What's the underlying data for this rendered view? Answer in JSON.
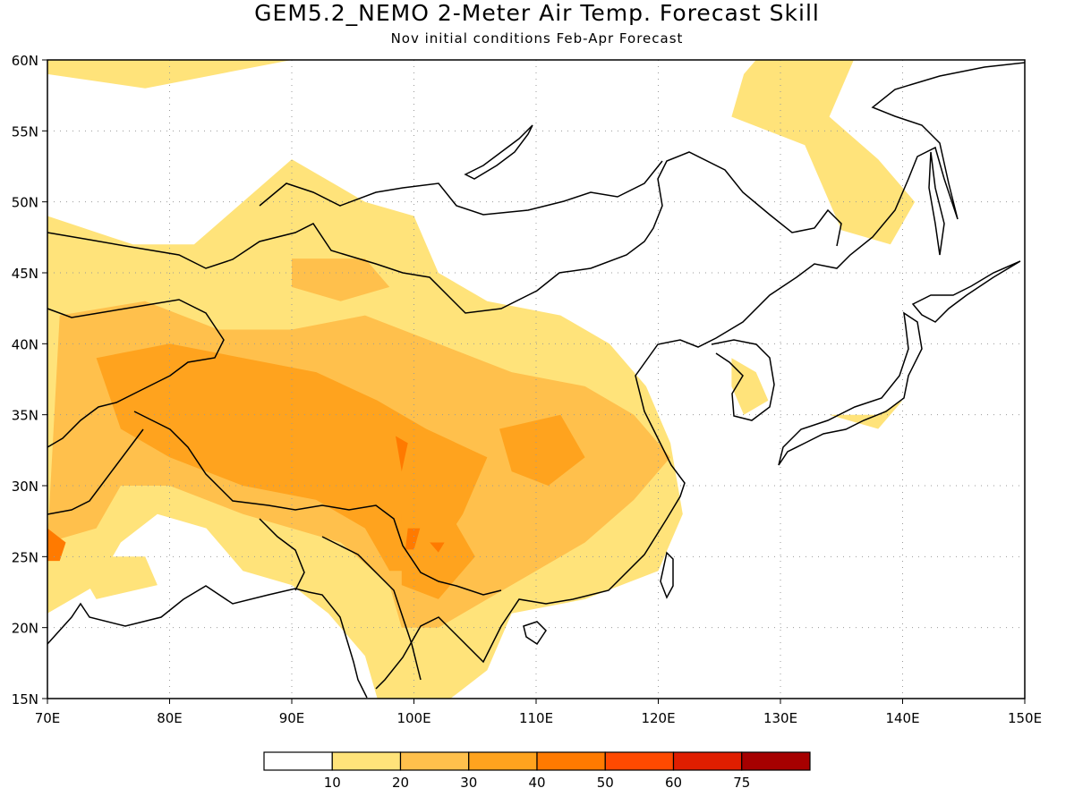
{
  "title": "GEM5.2_NEMO 2-Meter Air Temp. Forecast Skill",
  "subtitle": "Nov initial conditions  Feb-Apr Forecast",
  "map": {
    "lon_range": [
      70,
      150
    ],
    "lat_range": [
      15,
      60
    ],
    "lon_ticks": [
      {
        "value": 70,
        "label": "70E"
      },
      {
        "value": 80,
        "label": "80E"
      },
      {
        "value": 90,
        "label": "90E"
      },
      {
        "value": 100,
        "label": "100E"
      },
      {
        "value": 110,
        "label": "110E"
      },
      {
        "value": 120,
        "label": "120E"
      },
      {
        "value": 130,
        "label": "130E"
      },
      {
        "value": 140,
        "label": "140E"
      },
      {
        "value": 150,
        "label": "150E"
      }
    ],
    "lat_ticks": [
      {
        "value": 15,
        "label": "15N"
      },
      {
        "value": 20,
        "label": "20N"
      },
      {
        "value": 25,
        "label": "25N"
      },
      {
        "value": 30,
        "label": "30N"
      },
      {
        "value": 35,
        "label": "35N"
      },
      {
        "value": 40,
        "label": "40N"
      },
      {
        "value": 45,
        "label": "45N"
      },
      {
        "value": 50,
        "label": "50N"
      },
      {
        "value": 55,
        "label": "55N"
      },
      {
        "value": 60,
        "label": "60N"
      }
    ],
    "gridlines": "dotted"
  },
  "colorbar": {
    "colors": [
      "#ffffff",
      "#ffe37a",
      "#ffc04c",
      "#ffa31e",
      "#ff7a00",
      "#ff4a00",
      "#e01e00",
      "#a60000"
    ],
    "tick_labels": [
      "10",
      "20",
      "30",
      "40",
      "50",
      "60",
      "75"
    ]
  },
  "skill_regions": [
    {
      "level": 1,
      "name": "siberia-north",
      "lonlat": [
        [
          70,
          59
        ],
        [
          78,
          58
        ],
        [
          90,
          60
        ],
        [
          70,
          60
        ]
      ]
    },
    {
      "level": 1,
      "name": "ne-siberia",
      "lonlat": [
        [
          128,
          60
        ],
        [
          136,
          60
        ],
        [
          134,
          56
        ],
        [
          138,
          53
        ],
        [
          141,
          50
        ],
        [
          139,
          47
        ],
        [
          135,
          48
        ],
        [
          132,
          54
        ],
        [
          126,
          56
        ],
        [
          127,
          59
        ]
      ]
    },
    {
      "level": 1,
      "name": "central-asia-main",
      "lonlat": [
        [
          70,
          49
        ],
        [
          77,
          47
        ],
        [
          82,
          47
        ],
        [
          86,
          50
        ],
        [
          90,
          53
        ],
        [
          94,
          51
        ],
        [
          96,
          50
        ],
        [
          100,
          49
        ],
        [
          102,
          45
        ],
        [
          106,
          43
        ],
        [
          112,
          42
        ],
        [
          116,
          40
        ],
        [
          119,
          37
        ],
        [
          121,
          33
        ],
        [
          122,
          28
        ],
        [
          120,
          24
        ],
        [
          114,
          22
        ],
        [
          108,
          21
        ],
        [
          106,
          17
        ],
        [
          103,
          15
        ],
        [
          97,
          15
        ],
        [
          96,
          18
        ],
        [
          93,
          21
        ],
        [
          90,
          23
        ],
        [
          86,
          24
        ],
        [
          83,
          27
        ],
        [
          79,
          28
        ],
        [
          76,
          26
        ],
        [
          74,
          23
        ],
        [
          70,
          21
        ]
      ]
    },
    {
      "level": 1,
      "name": "korea-patch",
      "lonlat": [
        [
          126,
          39
        ],
        [
          128,
          38
        ],
        [
          129,
          36
        ],
        [
          127,
          35
        ],
        [
          126,
          37
        ]
      ]
    },
    {
      "level": 1,
      "name": "japan-patch",
      "lonlat": [
        [
          134,
          35
        ],
        [
          138,
          35
        ],
        [
          140,
          36
        ],
        [
          138,
          34
        ]
      ]
    },
    {
      "level": 1,
      "name": "india-west-patch",
      "lonlat": [
        [
          72,
          25
        ],
        [
          78,
          25
        ],
        [
          79,
          23
        ],
        [
          74,
          22
        ]
      ]
    },
    {
      "level": 2,
      "name": "tibet-central",
      "lonlat": [
        [
          71,
          42
        ],
        [
          78,
          43
        ],
        [
          84,
          41
        ],
        [
          90,
          41
        ],
        [
          96,
          42
        ],
        [
          102,
          40
        ],
        [
          108,
          38
        ],
        [
          114,
          37
        ],
        [
          118,
          35
        ],
        [
          121,
          32
        ],
        [
          118,
          29
        ],
        [
          114,
          26
        ],
        [
          110,
          24
        ],
        [
          106,
          22
        ],
        [
          102,
          20
        ],
        [
          99,
          20
        ],
        [
          98,
          23
        ],
        [
          94,
          26
        ],
        [
          90,
          27
        ],
        [
          86,
          28
        ],
        [
          80,
          30
        ],
        [
          76,
          30
        ],
        [
          74,
          27
        ],
        [
          70,
          26
        ]
      ]
    },
    {
      "level": 2,
      "name": "mongolia-west",
      "lonlat": [
        [
          90,
          46
        ],
        [
          96,
          46
        ],
        [
          98,
          44
        ],
        [
          94,
          43
        ],
        [
          90,
          44
        ]
      ]
    },
    {
      "level": 2,
      "name": "tajik-north",
      "lonlat": [
        [
          72,
          42
        ],
        [
          78,
          43
        ],
        [
          78,
          41
        ],
        [
          73,
          40
        ]
      ]
    },
    {
      "level": 3,
      "name": "tibet-core",
      "lonlat": [
        [
          74,
          39
        ],
        [
          80,
          40
        ],
        [
          86,
          39
        ],
        [
          92,
          38
        ],
        [
          97,
          36
        ],
        [
          101,
          34
        ],
        [
          106,
          32
        ],
        [
          104,
          28
        ],
        [
          101,
          24
        ],
        [
          98,
          24
        ],
        [
          96,
          27
        ],
        [
          92,
          29
        ],
        [
          86,
          30
        ],
        [
          80,
          32
        ],
        [
          76,
          34
        ]
      ]
    },
    {
      "level": 3,
      "name": "yunnan-core",
      "lonlat": [
        [
          99,
          28
        ],
        [
          103,
          28
        ],
        [
          105,
          25
        ],
        [
          102,
          22
        ],
        [
          99,
          23
        ]
      ]
    },
    {
      "level": 3,
      "name": "sichuan-east",
      "lonlat": [
        [
          107,
          34
        ],
        [
          112,
          35
        ],
        [
          114,
          32
        ],
        [
          111,
          30
        ],
        [
          108,
          31
        ]
      ]
    },
    {
      "level": 4,
      "name": "yunnan-hot-1",
      "lonlat": [
        [
          99.5,
          27
        ],
        [
          100.5,
          27
        ],
        [
          100,
          25.5
        ],
        [
          99.3,
          25.5
        ]
      ]
    },
    {
      "level": 4,
      "name": "qinghai-hot",
      "lonlat": [
        [
          98.5,
          33.5
        ],
        [
          99.5,
          33
        ],
        [
          99,
          31
        ]
      ]
    },
    {
      "level": 4,
      "name": "pakistan-hot",
      "lonlat": [
        [
          70,
          27
        ],
        [
          71.5,
          26
        ],
        [
          71,
          24.7
        ],
        [
          70,
          24.7
        ]
      ]
    },
    {
      "level": 4,
      "name": "yunnan-hot-2",
      "lonlat": [
        [
          101.3,
          26
        ],
        [
          102.5,
          26
        ],
        [
          102,
          25.3
        ]
      ]
    }
  ]
}
